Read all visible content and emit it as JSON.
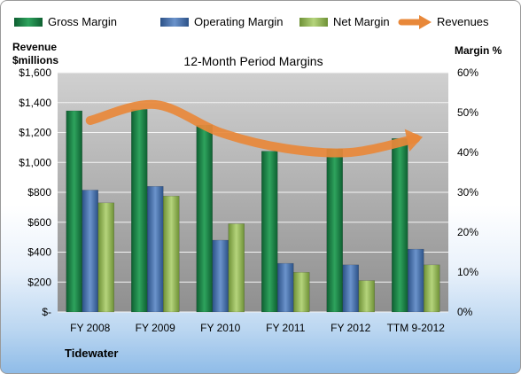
{
  "chart_data": {
    "type": "bar",
    "title": "12-Month Period Margins",
    "categories": [
      "FY 2008",
      "FY 2009",
      "FY 2010",
      "FY 2011",
      "FY 2012",
      "TTM 9-2012"
    ],
    "series": [
      {
        "name": "Gross Margin",
        "axis": "left",
        "color": "#1f8a4c",
        "values": [
          1345,
          1355,
          1250,
          1075,
          1090,
          1160
        ]
      },
      {
        "name": "Operating Margin",
        "axis": "left",
        "color": "#4a78b5",
        "values": [
          815,
          840,
          480,
          325,
          315,
          420
        ]
      },
      {
        "name": "Net Margin",
        "axis": "left",
        "color": "#9cbf5a",
        "values": [
          730,
          775,
          590,
          265,
          210,
          315
        ]
      },
      {
        "name": "Revenues",
        "type": "line",
        "axis": "right",
        "color": "#e8883a",
        "values": [
          48,
          52,
          45,
          41,
          40,
          43.5
        ]
      }
    ],
    "y_left": {
      "label_line1": "Revenue",
      "label_line2": "$millions",
      "range": [
        0,
        1600
      ],
      "ticks": [
        "$-",
        "$200",
        "$400",
        "$600",
        "$800",
        "$1,000",
        "$1,200",
        "$1,400",
        "$1,600"
      ]
    },
    "y_right": {
      "label": "Margin %",
      "range": [
        0,
        60
      ],
      "ticks": [
        "0%",
        "10%",
        "20%",
        "30%",
        "40%",
        "50%",
        "60%"
      ]
    },
    "grid": true,
    "legend_position": "top",
    "footer": "Tidewater"
  }
}
